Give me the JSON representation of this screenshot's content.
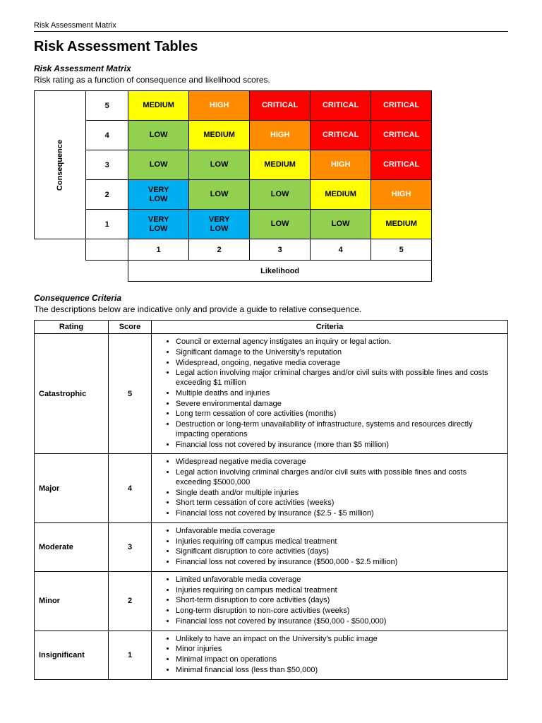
{
  "doc_header": "Risk Assessment Matrix",
  "page_title": "Risk Assessment Tables",
  "matrix_section": {
    "title": "Risk Assessment Matrix",
    "desc": "Risk rating as a function of consequence and likelihood scores.",
    "y_axis_label": "Consequence",
    "x_axis_label": "Likelihood",
    "y_values": [
      "5",
      "4",
      "3",
      "2",
      "1"
    ],
    "x_values": [
      "1",
      "2",
      "3",
      "4",
      "5"
    ],
    "colors": {
      "verylow": "#00b0f0",
      "low": "#92d050",
      "medium": "#ffff00",
      "high": "#ff8c00",
      "critical": "#ff0000"
    },
    "text_colors": {
      "dark": "#000000",
      "light": "#ffffff"
    },
    "cells": [
      [
        {
          "label": "MEDIUM",
          "bg": "medium",
          "fg": "dark"
        },
        {
          "label": "HIGH",
          "bg": "high",
          "fg": "light"
        },
        {
          "label": "CRITICAL",
          "bg": "critical",
          "fg": "light"
        },
        {
          "label": "CRITICAL",
          "bg": "critical",
          "fg": "light"
        },
        {
          "label": "CRITICAL",
          "bg": "critical",
          "fg": "light"
        }
      ],
      [
        {
          "label": "LOW",
          "bg": "low",
          "fg": "dark"
        },
        {
          "label": "MEDIUM",
          "bg": "medium",
          "fg": "dark"
        },
        {
          "label": "HIGH",
          "bg": "high",
          "fg": "light"
        },
        {
          "label": "CRITICAL",
          "bg": "critical",
          "fg": "light"
        },
        {
          "label": "CRITICAL",
          "bg": "critical",
          "fg": "light"
        }
      ],
      [
        {
          "label": "LOW",
          "bg": "low",
          "fg": "dark"
        },
        {
          "label": "LOW",
          "bg": "low",
          "fg": "dark"
        },
        {
          "label": "MEDIUM",
          "bg": "medium",
          "fg": "dark"
        },
        {
          "label": "HIGH",
          "bg": "high",
          "fg": "light"
        },
        {
          "label": "CRITICAL",
          "bg": "critical",
          "fg": "light"
        }
      ],
      [
        {
          "label": "VERY LOW",
          "bg": "verylow",
          "fg": "dark"
        },
        {
          "label": "LOW",
          "bg": "low",
          "fg": "dark"
        },
        {
          "label": "LOW",
          "bg": "low",
          "fg": "dark"
        },
        {
          "label": "MEDIUM",
          "bg": "medium",
          "fg": "dark"
        },
        {
          "label": "HIGH",
          "bg": "high",
          "fg": "light"
        }
      ],
      [
        {
          "label": "VERY LOW",
          "bg": "verylow",
          "fg": "dark"
        },
        {
          "label": "VERY LOW",
          "bg": "verylow",
          "fg": "dark"
        },
        {
          "label": "LOW",
          "bg": "low",
          "fg": "dark"
        },
        {
          "label": "LOW",
          "bg": "low",
          "fg": "dark"
        },
        {
          "label": "MEDIUM",
          "bg": "medium",
          "fg": "dark"
        }
      ]
    ]
  },
  "criteria_section": {
    "title": "Consequence Criteria",
    "desc": "The descriptions below are indicative only and provide a guide to relative consequence.",
    "columns": [
      "Rating",
      "Score",
      "Criteria"
    ],
    "rows": [
      {
        "rating": "Catastrophic",
        "score": "5",
        "items": [
          "Council or external agency instigates an inquiry or legal action.",
          "Significant damage to the University's reputation",
          "Widespread, ongoing, negative media coverage",
          "Legal action involving major criminal charges and/or civil suits with possible fines and costs exceeding $1 million",
          "Multiple deaths and injuries",
          "Severe environmental damage",
          "Long term cessation of core activities (months)",
          "Destruction or long-term unavailability of infrastructure, systems and resources directly impacting operations",
          "Financial loss not covered by insurance  (more than $5 million)"
        ]
      },
      {
        "rating": "Major",
        "score": "4",
        "items": [
          "Widespread negative media coverage",
          "Legal action involving criminal charges and/or civil suits with possible fines and costs exceeding $5000,000",
          "Single death and/or multiple injuries",
          "Short term cessation of core activities (weeks)",
          "Financial loss not covered by insurance ($2.5 - $5 million)"
        ]
      },
      {
        "rating": "Moderate",
        "score": "3",
        "items": [
          "Unfavorable media coverage",
          "Injuries requiring off campus medical treatment",
          "Significant disruption to core activities (days)",
          "Financial loss not covered by insurance ($500,000 - $2.5 million)"
        ]
      },
      {
        "rating": "Minor",
        "score": "2",
        "items": [
          "Limited unfavorable media coverage",
          "Injuries requiring on campus medical treatment",
          "Short-term disruption to core activities (days)",
          "Long-term disruption to non-core activities (weeks)",
          "Financial loss not covered by insurance ($50,000 - $500,000)"
        ]
      },
      {
        "rating": "Insignificant",
        "score": "1",
        "items": [
          "Unlikely to have an impact on the University's public image",
          "Minor injuries",
          "Minimal impact on operations",
          "Minimal financial loss (less than $50,000)"
        ]
      }
    ]
  }
}
